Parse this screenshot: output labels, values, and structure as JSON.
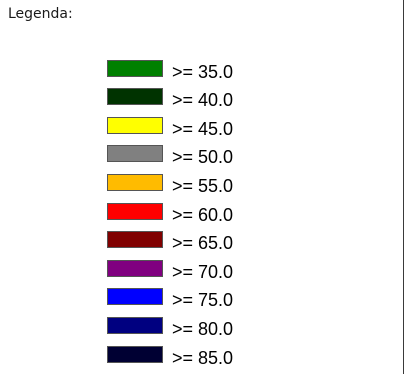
{
  "legend": {
    "title": "Legenda:",
    "items": [
      {
        "label": ">= 35.0",
        "color": "#008000"
      },
      {
        "label": ">= 40.0",
        "color": "#003300"
      },
      {
        "label": ">= 45.0",
        "color": "#ffff00"
      },
      {
        "label": ">= 50.0",
        "color": "#808080"
      },
      {
        "label": ">= 55.0",
        "color": "#ffbb00"
      },
      {
        "label": ">= 60.0",
        "color": "#ff0000"
      },
      {
        "label": ">= 65.0",
        "color": "#800000"
      },
      {
        "label": ">= 70.0",
        "color": "#800080"
      },
      {
        "label": ">= 75.0",
        "color": "#0000ff"
      },
      {
        "label": ">= 80.0",
        "color": "#000080"
      },
      {
        "label": ">= 85.0",
        "color": "#000033"
      }
    ]
  }
}
